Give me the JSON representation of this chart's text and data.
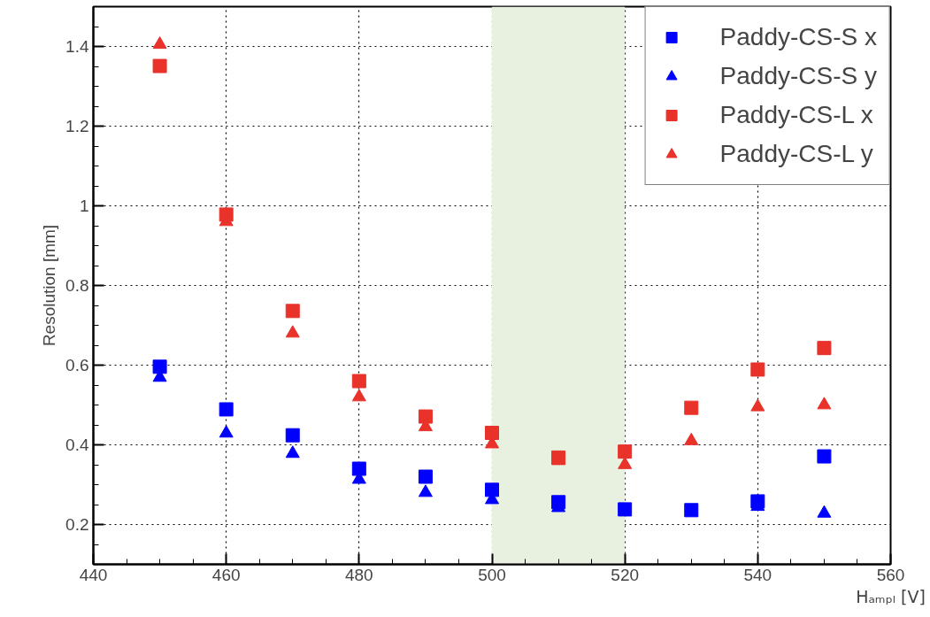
{
  "chart_data": {
    "type": "scatter",
    "xlabel": "Hₐₘₚₗ [V]",
    "ylabel": "Resolution [mm]",
    "x": [
      450,
      460,
      470,
      480,
      490,
      500,
      510,
      520,
      530,
      540,
      550
    ],
    "series": [
      {
        "name": "Paddy-CS-S x",
        "color": "#0000ff",
        "marker": "square",
        "values": [
          0.596,
          0.489,
          0.424,
          0.34,
          0.32,
          0.287,
          0.256,
          0.238,
          0.236,
          0.258,
          0.371
        ]
      },
      {
        "name": "Paddy-CS-S y",
        "color": "#0000ff",
        "marker": "triangle",
        "values": [
          0.569,
          0.429,
          0.378,
          0.313,
          0.28,
          0.262,
          0.242,
          null,
          null,
          0.245,
          0.228
        ]
      },
      {
        "name": "Paddy-CS-L x",
        "color": "#e8322a",
        "marker": "square",
        "values": [
          1.351,
          0.978,
          0.736,
          0.56,
          0.471,
          0.43,
          0.368,
          0.383,
          0.493,
          0.589,
          0.643
        ]
      },
      {
        "name": "Paddy-CS-L y",
        "color": "#e8322a",
        "marker": "triangle",
        "values": [
          1.405,
          0.96,
          0.68,
          0.52,
          0.445,
          0.402,
          0.36,
          0.35,
          0.41,
          0.495,
          0.5
        ]
      }
    ],
    "xlim": [
      440,
      560
    ],
    "xticks": [
      440,
      460,
      480,
      500,
      520,
      540,
      560
    ],
    "ylim": [
      0.1,
      1.5
    ],
    "yticks": [
      0.2,
      0.4,
      0.6,
      0.8,
      {
        "value": 1.0,
        "label": "1"
      },
      1.2,
      1.4
    ],
    "bands": [
      {
        "axis": "x",
        "from": 500,
        "to": 520,
        "color": "#e8f0e0"
      }
    ],
    "grid": true,
    "legend": "top right"
  }
}
